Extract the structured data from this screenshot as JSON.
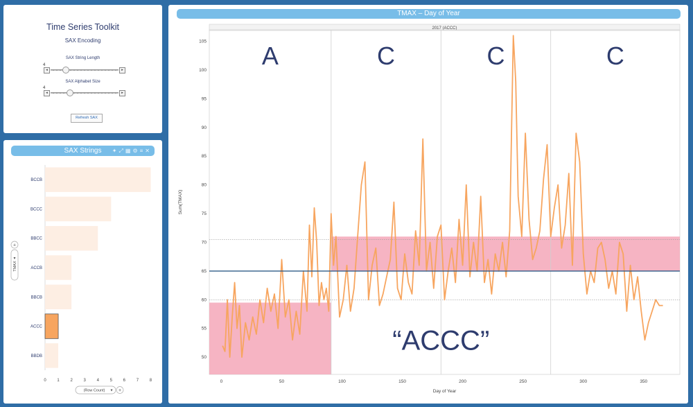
{
  "controls": {
    "title": "Time Series Toolkit",
    "subtitle": "SAX Encoding",
    "string_length_label": "SAX String Length",
    "string_length_value": "4",
    "alphabet_size_label": "SAX Alphabet Size",
    "alphabet_size_value": "4",
    "refresh_label": "Refresh SAX",
    "slider_left_arrow": "◂",
    "slider_right_arrow": "▸"
  },
  "sax_panel": {
    "title": "SAX Strings",
    "icons": [
      "pin-icon",
      "expand-icon",
      "grid-icon",
      "gear-icon",
      "menu-icon",
      "close-icon"
    ],
    "axis_title": "TMAX",
    "axis_footer": "(Row Count)",
    "plus_symbol": "+",
    "dropdown_arrow": "▾"
  },
  "main": {
    "header_title": "TMAX – Day of Year",
    "pane_label": "2017 (ACCC)",
    "annotation": "“ACCC”",
    "segment_letters": [
      "A",
      "C",
      "C",
      "C"
    ]
  },
  "colors": {
    "background": "#2f6da6",
    "header_blue": "#78bde8",
    "line_orange": "#f7a55f",
    "band_pink": "#f5a7b8",
    "bar_light": "#fdeee3",
    "bar_highlight": "#f7a55f",
    "mean_line": "#2f5b87"
  },
  "chart_data": [
    {
      "type": "bar",
      "orientation": "horizontal",
      "categories": [
        "BCCB",
        "BCCC",
        "BBCC",
        "ACCB",
        "BBCB",
        "ACCC",
        "BBDB"
      ],
      "values": [
        8,
        5,
        4,
        2,
        2,
        1,
        1
      ],
      "highlight": "ACCC",
      "xlim": [
        0,
        8.5
      ],
      "xticks": [
        0,
        1,
        2,
        3,
        4,
        5,
        6,
        7,
        8
      ],
      "xlabel": "(Row Count)",
      "ylabel": "TMAX"
    },
    {
      "type": "line",
      "title": "TMAX – Day of Year",
      "subtitle": "2017 (ACCC)",
      "xlabel": "Day of Year",
      "ylabel": "Sum(TMAX)",
      "xlim": [
        -10,
        380
      ],
      "ylim": [
        47,
        107
      ],
      "xticks": [
        0,
        50,
        100,
        150,
        200,
        250,
        300,
        350
      ],
      "yticks": [
        50,
        55,
        60,
        65,
        70,
        75,
        80,
        85,
        90,
        95,
        100,
        105
      ],
      "segment_boundaries": [
        91,
        182,
        273
      ],
      "mean_line": 65,
      "reference_lines": [
        70.5,
        60
      ],
      "sax_bands": [
        {
          "x": [
            -10,
            91
          ],
          "y": [
            47,
            59.5
          ],
          "letter": "A"
        },
        {
          "x": [
            91,
            380
          ],
          "y": [
            65,
            71
          ],
          "letter": "C"
        }
      ],
      "series": [
        {
          "x": [
            1,
            3,
            5,
            7,
            9,
            11,
            13,
            15,
            17,
            20,
            23,
            26,
            29,
            32,
            35,
            38,
            41,
            44,
            47,
            50,
            53,
            56,
            59,
            62,
            65,
            68,
            71,
            73,
            75,
            77,
            79,
            81,
            83,
            85,
            87,
            89,
            91,
            93,
            95,
            98,
            101,
            104,
            107,
            110,
            113,
            116,
            119,
            122,
            125,
            128,
            131,
            134,
            137,
            140,
            143,
            146,
            149,
            152,
            155,
            158,
            161,
            164,
            167,
            170,
            173,
            176,
            179,
            182,
            185,
            188,
            191,
            194,
            197,
            200,
            203,
            206,
            209,
            212,
            215,
            218,
            221,
            224,
            227,
            230,
            233,
            236,
            239,
            242,
            244,
            246,
            249,
            252,
            255,
            258,
            261,
            264,
            267,
            270,
            273,
            276,
            279,
            282,
            285,
            288,
            291,
            294,
            297,
            300,
            303,
            306,
            309,
            312,
            315,
            318,
            321,
            324,
            327,
            330,
            333,
            336,
            339,
            342,
            345,
            348,
            351,
            354,
            357,
            360,
            363,
            366
          ],
          "y": [
            52,
            51,
            60,
            50,
            57,
            63,
            55,
            59,
            50,
            56,
            53,
            57,
            54,
            60,
            56,
            62,
            58,
            61,
            55,
            67,
            57,
            60,
            53,
            58,
            54,
            65,
            58,
            73,
            64,
            76,
            70,
            59,
            63,
            60,
            62,
            58,
            75,
            66,
            71,
            57,
            60,
            66,
            58,
            62,
            71,
            80,
            84,
            60,
            66,
            69,
            59,
            61,
            64,
            67,
            77,
            62,
            60,
            68,
            63,
            61,
            72,
            66,
            88,
            65,
            70,
            62,
            71,
            73,
            60,
            65,
            69,
            63,
            74,
            66,
            80,
            64,
            70,
            65,
            78,
            63,
            67,
            61,
            68,
            65,
            70,
            64,
            72,
            106,
            98,
            78,
            71,
            89,
            74,
            67,
            69,
            72,
            81,
            87,
            71,
            76,
            80,
            69,
            73,
            82,
            66,
            89,
            84,
            68,
            61,
            65,
            63,
            69,
            70,
            67,
            62,
            65,
            61,
            70,
            68,
            58,
            66,
            60,
            64,
            58,
            53,
            56,
            58,
            60,
            59,
            59
          ]
        }
      ]
    }
  ]
}
